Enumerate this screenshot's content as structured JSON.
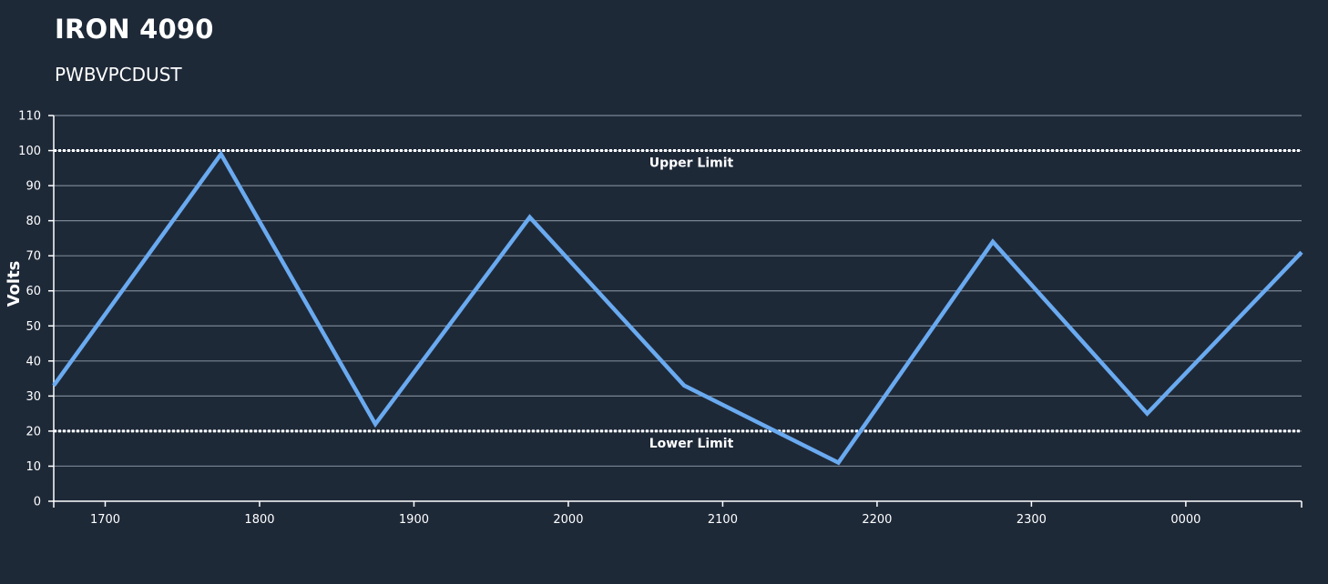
{
  "header": {
    "title": "IRON 4090",
    "subtitle": "PWBVPCDUST"
  },
  "colors": {
    "background": "#1e2938",
    "series": "#6aaaf0",
    "grid": "#7a8594",
    "axis": "#ffffff",
    "limit": "#ffffff"
  },
  "chart_data": {
    "type": "line",
    "ylabel": "Volts",
    "xlabel": "",
    "ylim": [
      0,
      110
    ],
    "yticks": [
      0,
      10,
      20,
      30,
      40,
      50,
      60,
      70,
      80,
      90,
      100,
      110
    ],
    "xlim": [
      "1640",
      "0045"
    ],
    "xticks": [
      "1700",
      "1800",
      "1900",
      "2000",
      "2100",
      "2200",
      "2300",
      "0000"
    ],
    "grid": true,
    "series": [
      {
        "x": [
          "1640",
          "1745",
          "1845",
          "1945",
          "2045",
          "2145",
          "2245",
          "2345",
          "0045"
        ],
        "y": [
          33,
          99,
          22,
          81,
          33,
          11,
          74,
          25,
          71
        ]
      }
    ],
    "limits": [
      {
        "label": "Upper Limit",
        "value": 100
      },
      {
        "label": "Lower Limit",
        "value": 20
      }
    ]
  }
}
